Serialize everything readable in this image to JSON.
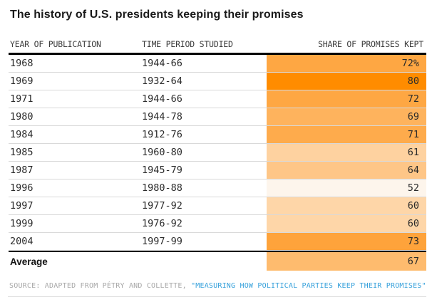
{
  "title": "The history of U.S. presidents keeping their promises",
  "table": {
    "columns": {
      "year": "YEAR OF PUBLICATION",
      "period": "TIME PERIOD STUDIED",
      "share": "SHARE OF PROMISES KEPT"
    },
    "rows": [
      {
        "year": "1968",
        "period": "1944-66",
        "share": "72%",
        "color": "#FEA743"
      },
      {
        "year": "1969",
        "period": "1932-64",
        "share": "80",
        "color": "#FF8C00"
      },
      {
        "year": "1971",
        "period": "1944-66",
        "share": "72",
        "color": "#FEA743"
      },
      {
        "year": "1980",
        "period": "1944-78",
        "share": "69",
        "color": "#FEB35D"
      },
      {
        "year": "1984",
        "period": "1912-76",
        "share": "71",
        "color": "#FEAB4C"
      },
      {
        "year": "1985",
        "period": "1960-80",
        "share": "61",
        "color": "#FED2A0"
      },
      {
        "year": "1987",
        "period": "1945-79",
        "share": "64",
        "color": "#FEC687"
      },
      {
        "year": "1996",
        "period": "1980-88",
        "share": "52",
        "color": "#FDF5EC"
      },
      {
        "year": "1997",
        "period": "1977-92",
        "share": "60",
        "color": "#FED6A8"
      },
      {
        "year": "1999",
        "period": "1976-92",
        "share": "60",
        "color": "#FED6A8"
      },
      {
        "year": "2004",
        "period": "1997-99",
        "share": "73",
        "color": "#FEA33B"
      }
    ],
    "average": {
      "label": "Average",
      "share": "67",
      "color": "#FEBB6E"
    }
  },
  "footer": {
    "source_prefix": "SOURCE: ADAPTED FROM PÉTRY AND COLLETTE, ",
    "source_link": "\"MEASURING HOW POLITICAL PARTIES KEEP THEIR PROMISES\"",
    "link_color": "#35A0DB"
  },
  "chart_data": {
    "type": "heatmap",
    "title": "The history of U.S. presidents keeping their promises",
    "columns": [
      "YEAR OF PUBLICATION",
      "TIME PERIOD STUDIED",
      "SHARE OF PROMISES KEPT"
    ],
    "categories": [
      "1968",
      "1969",
      "1971",
      "1980",
      "1984",
      "1985",
      "1987",
      "1996",
      "1997",
      "1999",
      "2004"
    ],
    "time_periods": [
      "1944-66",
      "1932-64",
      "1944-66",
      "1944-78",
      "1912-76",
      "1960-80",
      "1945-79",
      "1980-88",
      "1977-92",
      "1976-92",
      "1997-99"
    ],
    "values_pct": [
      72,
      80,
      72,
      69,
      71,
      61,
      64,
      52,
      60,
      60,
      73
    ],
    "average_pct": 67,
    "color_scale": {
      "min_value": 52,
      "max_value": 80,
      "min_color": "#FDF5EC",
      "max_color": "#FF8C00"
    }
  }
}
